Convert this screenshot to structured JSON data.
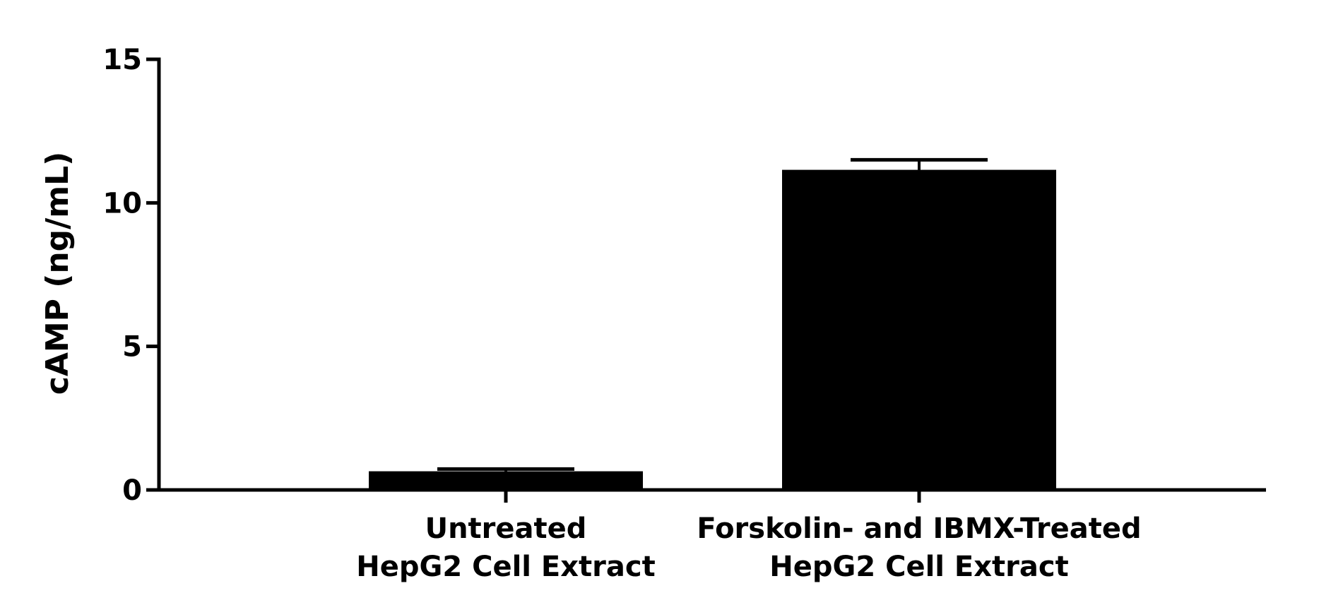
{
  "chart_data": {
    "type": "bar",
    "categories": [
      [
        "Untreated",
        "HepG2 Cell Extract"
      ],
      [
        "Forskolin- and IBMX-Treated",
        "HepG2 Cell Extract"
      ]
    ],
    "values": [
      0.65,
      11.15
    ],
    "error_upper": [
      0.08,
      0.35
    ],
    "ylabel": "cAMP (ng/mL)",
    "xlabel": "",
    "title": "",
    "ylim": [
      0,
      15
    ],
    "yticks": [
      0,
      5,
      10,
      15
    ],
    "grid": false,
    "legend": false,
    "colors": {
      "bar": "#000000",
      "axis": "#000000",
      "background": "#ffffff"
    }
  }
}
